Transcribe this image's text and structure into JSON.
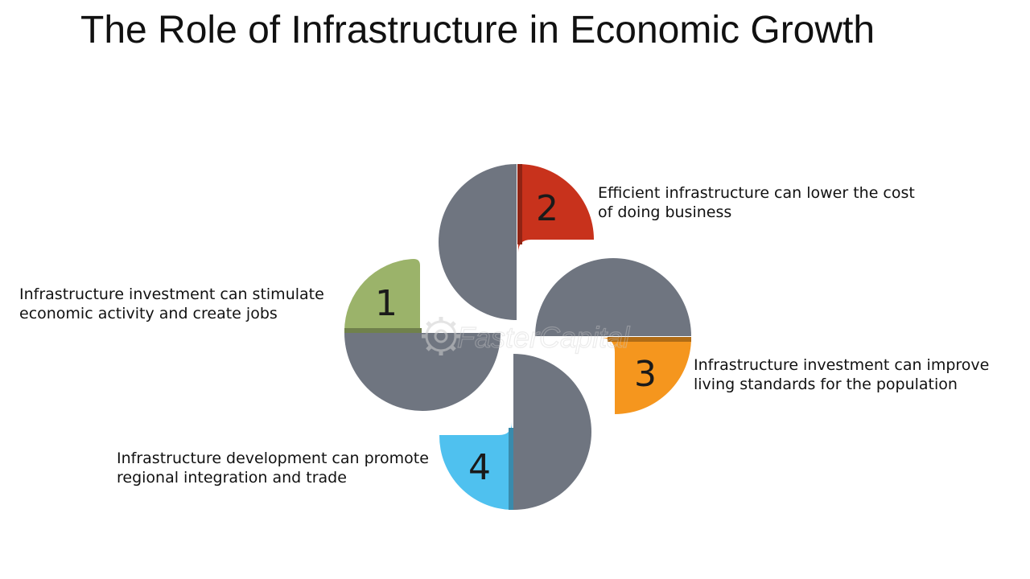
{
  "title": "The Role of Infrastructure in Economic Growth",
  "colors": {
    "gray": "#6f7580",
    "item_1": "#9bb36a",
    "item_2": "#c8321c",
    "item_3": "#f5961e",
    "item_4": "#4fc1ef"
  },
  "items": [
    {
      "number": "1",
      "line1": "Infrastructure investment can stimulate",
      "line2": "economic activity and create jobs"
    },
    {
      "number": "2",
      "line1": "Efficient infrastructure can lower the cost",
      "line2": "of doing business"
    },
    {
      "number": "3",
      "line1": "Infrastructure investment can improve",
      "line2": "living standards for the population"
    },
    {
      "number": "4",
      "line1": "Infrastructure development can promote",
      "line2": "regional integration and trade"
    }
  ],
  "watermark": {
    "text": "FasterCapital",
    "icon": "gear-icon"
  }
}
